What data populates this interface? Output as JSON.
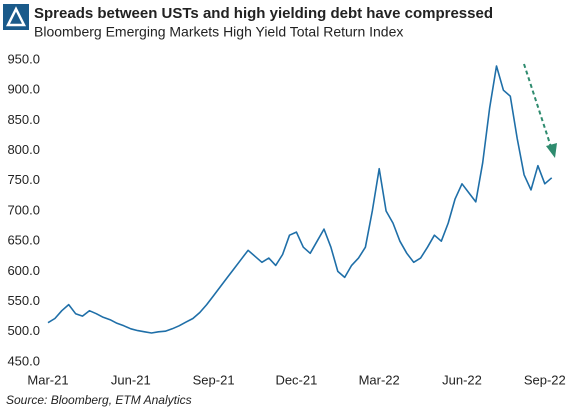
{
  "chart_data": {
    "type": "line",
    "title": "Spreads between USTs and high yielding debt have compressed",
    "subtitle": "Bloomberg Emerging Markets High Yield Total Return Index",
    "source": "Source: Bloomberg, ETM Analytics",
    "categories": [
      "Mar-21",
      null,
      null,
      null,
      null,
      null,
      null,
      null,
      null,
      null,
      null,
      null,
      "Jun-21",
      null,
      null,
      null,
      null,
      null,
      null,
      null,
      null,
      null,
      null,
      null,
      "Sep-21",
      null,
      null,
      null,
      null,
      null,
      null,
      null,
      null,
      null,
      null,
      null,
      "Dec-21",
      null,
      null,
      null,
      null,
      null,
      null,
      null,
      null,
      null,
      null,
      null,
      "Mar-22",
      null,
      null,
      null,
      null,
      null,
      null,
      null,
      null,
      null,
      null,
      null,
      "Jun-22",
      null,
      null,
      null,
      null,
      null,
      null,
      null,
      null,
      null,
      null,
      null,
      "Sep-22",
      null
    ],
    "series": [
      {
        "name": "Bloomberg Emerging Markets High Yield Total Return Index",
        "color": "#1f6fa8",
        "values": [
          515,
          522,
          535,
          545,
          530,
          526,
          535,
          530,
          524,
          520,
          514,
          510,
          505,
          502,
          500,
          498,
          500,
          501,
          505,
          510,
          516,
          522,
          532,
          545,
          560,
          575,
          590,
          605,
          620,
          635,
          625,
          615,
          622,
          610,
          628,
          660,
          665,
          640,
          630,
          650,
          670,
          640,
          600,
          590,
          610,
          622,
          640,
          700,
          770,
          700,
          680,
          650,
          630,
          615,
          622,
          640,
          660,
          650,
          680,
          720,
          745,
          730,
          715,
          780,
          870,
          940,
          900,
          890,
          820,
          760,
          735,
          775,
          745,
          755
        ]
      }
    ],
    "ylim": [
      450,
      950
    ],
    "yticks": [
      {
        "value": 450,
        "label": "450.0"
      },
      {
        "value": 500,
        "label": "500.0"
      },
      {
        "value": 550,
        "label": "550.0"
      },
      {
        "value": 600,
        "label": "600.0"
      },
      {
        "value": 650,
        "label": "650.0"
      },
      {
        "value": 700,
        "label": "700.0"
      },
      {
        "value": 750,
        "label": "750.0"
      },
      {
        "value": 800,
        "label": "800.0"
      },
      {
        "value": 850,
        "label": "850.0"
      },
      {
        "value": 900,
        "label": "900.0"
      },
      {
        "value": 950,
        "label": "950.0"
      }
    ],
    "grid": false
  }
}
